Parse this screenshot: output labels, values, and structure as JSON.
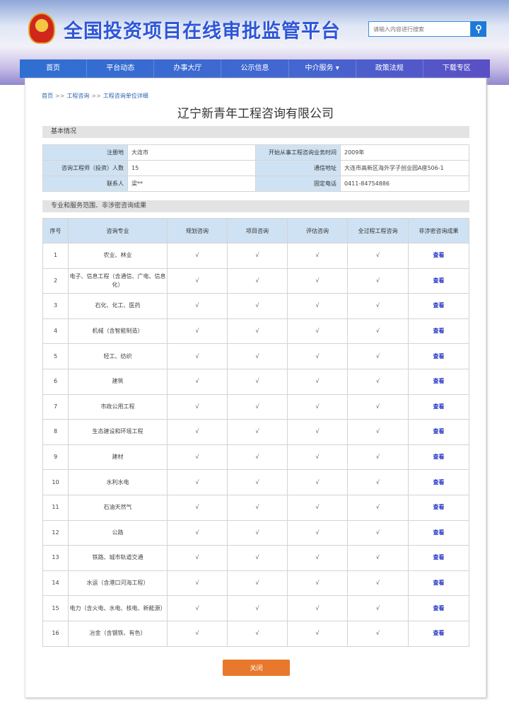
{
  "header": {
    "title": "全国投资项目在线审批监管平台",
    "search_placeholder": "请输入内容进行搜索"
  },
  "nav": [
    "首页",
    "平台动态",
    "办事大厅",
    "公示信息",
    "中介服务 ▾",
    "政策法规",
    "下载专区"
  ],
  "breadcrumb": [
    "首页",
    "工程咨询",
    "工程咨询单位详细"
  ],
  "breadcrumb_sep": ">>",
  "company": "辽宁新青年工程咨询有限公司",
  "basic": {
    "title": "基本情况",
    "rows": [
      [
        {
          "label": "注册地",
          "value": "大连市"
        },
        {
          "label": "开始从事工程咨询业务时间",
          "value": "2009年"
        }
      ],
      [
        {
          "label": "咨询工程师（投资）人数",
          "value": "15"
        },
        {
          "label": "通信地址",
          "value": "大连市高新区海外学子创业园A座506-1"
        }
      ],
      [
        {
          "label": "联系人",
          "value": "梁**"
        },
        {
          "label": "固定电话",
          "value": "0411-84754886"
        }
      ]
    ]
  },
  "scope": {
    "title": "专业和服务范围、非涉密咨询成果",
    "headers": [
      "序号",
      "咨询专业",
      "规划咨询",
      "项目咨询",
      "评估咨询",
      "全过程工程咨询",
      "非涉密咨询成果"
    ],
    "check": "√",
    "link": "查看",
    "rows": [
      "农业、林业",
      "电子、信息工程（含通信、广电、信息化）",
      "石化、化工、医药",
      "机械（含智能制造）",
      "轻工、纺织",
      "建筑",
      "市政公用工程",
      "生态建设和环境工程",
      "建材",
      "水利水电",
      "石油天然气",
      "公路",
      "铁路、城市轨道交通",
      "水运（含港口河海工程）",
      "电力（含火电、水电、核电、新能源）",
      "冶金（含钢铁、有色）"
    ]
  },
  "close_label": "关闭"
}
